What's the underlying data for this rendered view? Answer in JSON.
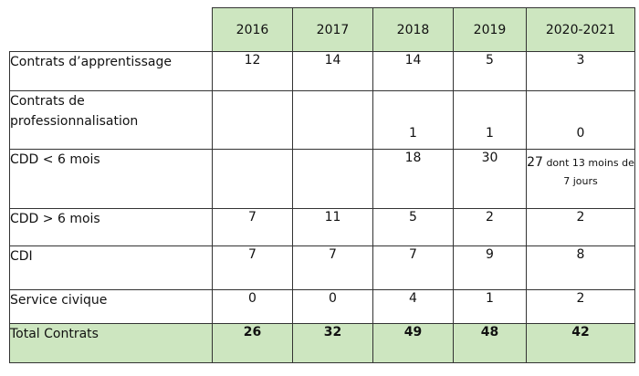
{
  "table": {
    "years": [
      "2016",
      "2017",
      "2018",
      "2019",
      "2020-2021"
    ],
    "rows": [
      {
        "label": "Contrats d’apprentissage",
        "values": [
          "12",
          "14",
          "14",
          "5",
          "3"
        ]
      },
      {
        "label": "Contrats de professionnalisation",
        "values": [
          "",
          "",
          "1",
          "1",
          "0"
        ]
      },
      {
        "label": "CDD < 6 mois",
        "values": [
          "",
          "",
          "18",
          "30",
          ""
        ],
        "note_value": "27",
        "note_text": "dont 13 moins de 7 jours"
      },
      {
        "label": "CDD > 6 mois",
        "values": [
          "7",
          "11",
          "5",
          "2",
          "2"
        ]
      },
      {
        "label": "CDI",
        "values": [
          "7",
          "7",
          "7",
          "9",
          "8"
        ]
      },
      {
        "label": "Service civique",
        "values": [
          "0",
          "0",
          "4",
          "1",
          "2"
        ]
      }
    ],
    "total": {
      "label": "Total Contrats",
      "values": [
        "26",
        "32",
        "49",
        "48",
        "42"
      ]
    }
  }
}
